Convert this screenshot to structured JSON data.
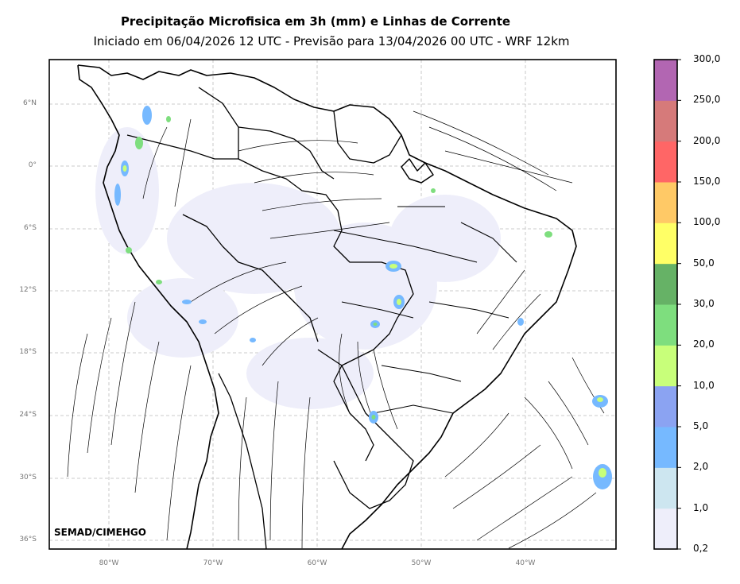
{
  "title": "Precipitação Microfisica em 3h (mm) e Linhas de Corrente",
  "subtitle": "Iniciado em 06/04/2026 12 UTC - Previsão para 13/04/2026 00 UTC - WRF 12km",
  "credit": "SEMAD/CIMEHGO",
  "latitude_labels": [
    "6°N",
    "0°",
    "6°S",
    "12°S",
    "18°S",
    "24°S",
    "30°S",
    "36°S"
  ],
  "longitude_labels": [
    "80°W",
    "70°W",
    "60°W",
    "50°W",
    "40°W"
  ],
  "colorbar": {
    "levels": [
      "0,2",
      "1,0",
      "2,0",
      "5,0",
      "10,0",
      "20,0",
      "30,0",
      "50,0",
      "100,0",
      "150,0",
      "200,0",
      "250,0",
      "300,0"
    ],
    "colors": [
      "#eeeefa",
      "#cde6f0",
      "#76b9ff",
      "#8ba3f2",
      "#c8ff7a",
      "#7ede7e",
      "#66b266",
      "#ffff66",
      "#ffc966",
      "#ff6666",
      "#d67a7a",
      "#b266b2"
    ]
  }
}
